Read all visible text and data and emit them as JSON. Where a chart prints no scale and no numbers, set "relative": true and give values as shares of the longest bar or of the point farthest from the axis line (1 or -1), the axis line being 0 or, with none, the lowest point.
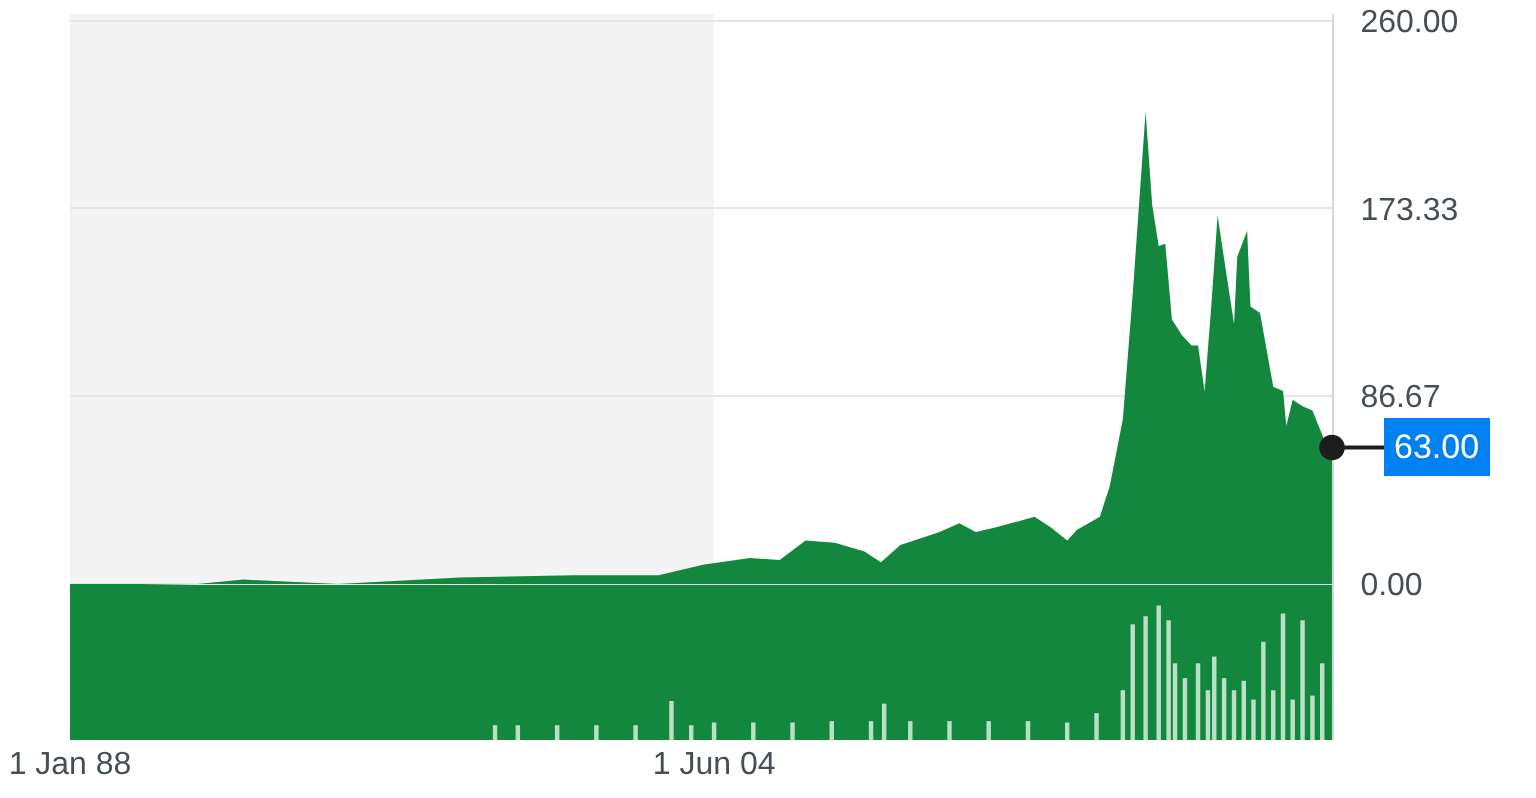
{
  "chart_data": [
    {
      "type": "area",
      "x": [
        "1988-01-01",
        "1991-04",
        "1992-06",
        "1994-11",
        "1997-12",
        "2000-11",
        "2003-01",
        "2004-03",
        "2005-05",
        "2006-02",
        "2006-10",
        "2007-07",
        "2008-04",
        "2008-09",
        "2009-03",
        "2010-03",
        "2010-09",
        "2011-02",
        "2011-08",
        "2012-08",
        "2013-01",
        "2013-06",
        "2013-09",
        "2014-04",
        "2014-07",
        "2014-11",
        "2015-02",
        "2015-06",
        "2015-08",
        "2015-10",
        "2015-12",
        "2016-02",
        "2016-05",
        "2016-08",
        "2016-10",
        "2016-12",
        "2017-02",
        "2017-04",
        "2017-07",
        "2017-09",
        "2017-10",
        "2018-01",
        "2018-02",
        "2018-05",
        "2018-09",
        "2018-12",
        "2019-01",
        "2019-03",
        "2019-06",
        "2019-09",
        "2020-01",
        "2020-03"
      ],
      "series": [
        {
          "color": "#14873e",
          "values": [
            -1,
            0,
            2,
            0,
            3,
            4,
            4,
            9,
            12,
            11,
            20,
            19,
            15,
            10,
            18,
            24,
            28,
            24,
            26,
            31,
            26,
            20,
            25,
            31,
            45,
            76,
            134,
            218,
            175,
            156,
            157,
            122,
            115,
            110,
            110,
            89,
            128,
            170,
            140,
            120,
            151,
            163,
            128,
            125,
            91,
            89,
            73,
            85,
            82,
            80,
            65,
            63
          ]
        }
      ],
      "xlim": [
        "1988-01-01",
        "2020-03"
      ],
      "xticks": [
        {
          "value": "1988-01-01",
          "label": "1 Jan 88"
        },
        {
          "value": "2004-06-01",
          "label": "1 Jun 04"
        }
      ],
      "ylim": [
        -72,
        263
      ],
      "yticks": [
        {
          "value": 0,
          "label": "0.00"
        },
        {
          "value": 86.67,
          "label": "86.67"
        },
        {
          "value": 173.33,
          "label": "173.33"
        },
        {
          "value": 260,
          "label": "260.00"
        }
      ],
      "grid": "y",
      "marker": "none",
      "bands": [
        {
          "axis": "x",
          "from": "1988-01-01",
          "to": "2004-06-01",
          "color": "#f4f4f4"
        },
        {
          "axis": "y",
          "from": -72,
          "to": 0,
          "color": "#14873e"
        }
      ],
      "annotations": [
        {
          "text": "63.00",
          "x": "2020-03",
          "y": 63
        }
      ]
    },
    {
      "type": "bar",
      "relative": true,
      "xlim": [
        "1988-01-01",
        "2020-03"
      ],
      "x": [
        "1998-11",
        "1999-06",
        "2000-06",
        "2001-06",
        "2002-06",
        "2003-05",
        "2003-11",
        "2004-06",
        "2005-06",
        "2006-06",
        "2007-06",
        "2008-06",
        "2008-10",
        "2009-06",
        "2010-06",
        "2011-06",
        "2012-06",
        "2013-06",
        "2014-03",
        "2014-11",
        "2015-02",
        "2015-06",
        "2015-10",
        "2016-01",
        "2016-03",
        "2016-06",
        "2016-10",
        "2017-01",
        "2017-03",
        "2017-06",
        "2017-09",
        "2017-12",
        "2018-03",
        "2018-06",
        "2018-09",
        "2018-12",
        "2019-03",
        "2019-06",
        "2019-09",
        "2019-12"
      ],
      "series": [
        {
          "color": "#b9dfc6",
          "values": [
            0.11,
            0.11,
            0.11,
            0.11,
            0.11,
            0.29,
            0.11,
            0.13,
            0.13,
            0.13,
            0.14,
            0.14,
            0.27,
            0.14,
            0.14,
            0.14,
            0.14,
            0.13,
            0.2,
            0.37,
            0.86,
            0.92,
            1,
            0.89,
            0.57,
            0.46,
            0.57,
            0.37,
            0.62,
            0.46,
            0.37,
            0.44,
            0.3,
            0.73,
            0.37,
            0.94,
            0.3,
            0.89,
            0.33,
            0.57
          ]
        }
      ]
    }
  ]
}
